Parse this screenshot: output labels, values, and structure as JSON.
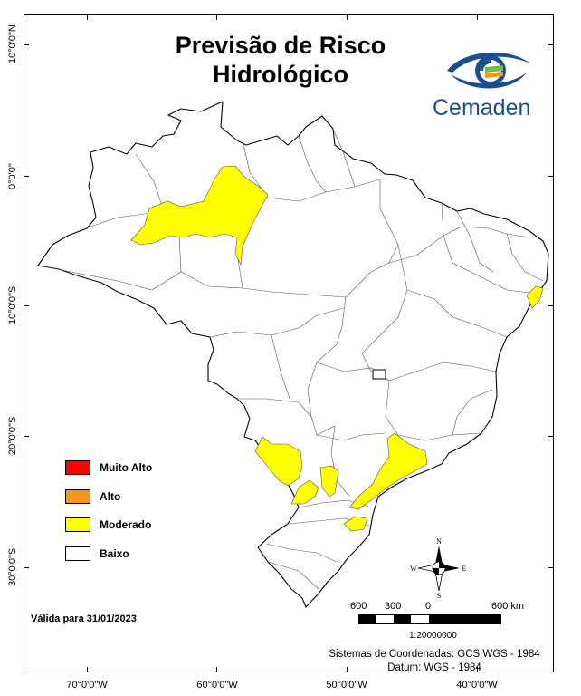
{
  "title_line1": "Previsão de Risco",
  "title_line2": "Hidrológico",
  "logo_text": "Cemaden",
  "legend": [
    {
      "label": "Muito Alto",
      "color": "#ff0000"
    },
    {
      "label": "Alto",
      "color": "#f7941d"
    },
    {
      "label": "Moderado",
      "color": "#ffff00"
    },
    {
      "label": "Baixo",
      "color": "#ffffff"
    }
  ],
  "valid_text": "Válida para 31/01/2023",
  "lat_labels": [
    "10°0'0\"N",
    "0°0'0\"",
    "10°0'0\"S",
    "20°0'0\"S",
    "30°0'0\"S"
  ],
  "lon_labels": [
    "70°0'0\"W",
    "60°0'0\"W",
    "50°0'0\"W",
    "40°0'0\"W"
  ],
  "scale": {
    "labels": [
      "600",
      "300",
      "0",
      "600 km"
    ],
    "ratio": "1:20000000"
  },
  "compass": {
    "n": "N",
    "s": "S",
    "e": "E",
    "w": "W"
  },
  "coord_system": "Sistemas de Coordenadas: GCS WGS - 1984",
  "datum": "Datum: WGS - 1984",
  "colors": {
    "moderate": "#ffff00",
    "logo_blue": "#1b4f8c",
    "logo_green": "#6dbe45",
    "logo_orange": "#f7941d"
  }
}
